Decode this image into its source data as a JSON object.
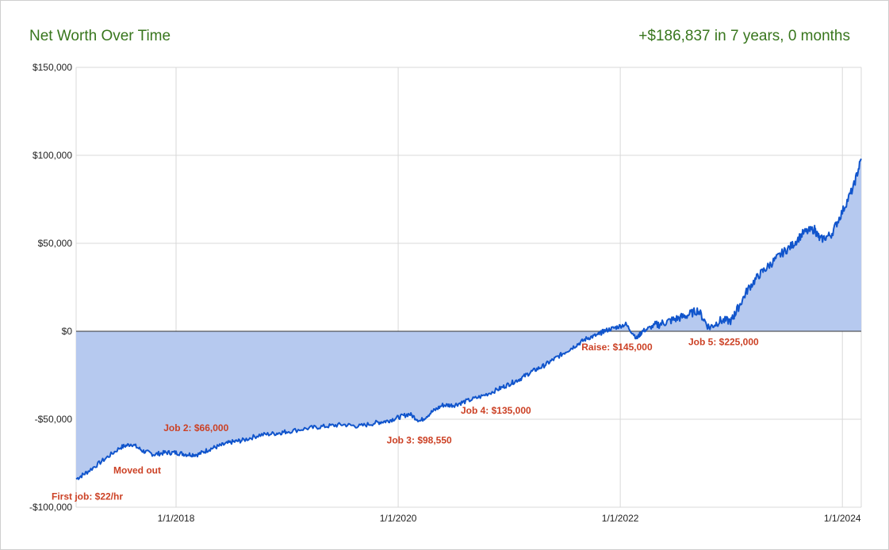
{
  "chart_data": {
    "type": "area",
    "title": "Net Worth Over Time",
    "subtitle": "+$186,837 in 7 years, 0 months",
    "xlabel": "",
    "ylabel": "",
    "x_ticks": [
      "1/1/2018",
      "1/1/2020",
      "1/1/2022",
      "1/1/2024"
    ],
    "x_tick_values": [
      2018.0,
      2020.0,
      2022.0,
      2024.0
    ],
    "xlim": [
      2017.1,
      2024.17
    ],
    "ylim": [
      -100000,
      150000
    ],
    "y_ticks": [
      -100000,
      -50000,
      0,
      50000,
      100000,
      150000
    ],
    "y_tick_labels": [
      "-$100,000",
      "-$50,000",
      "$0",
      "$50,000",
      "$100,000",
      "$150,000"
    ],
    "grid": true,
    "legend": "none",
    "series": [
      {
        "color": "#1155cc",
        "fill": "#b6c9ef",
        "x": [
          2017.1,
          2017.2,
          2017.35,
          2017.5,
          2017.6,
          2017.7,
          2017.8,
          2017.9,
          2018.0,
          2018.1,
          2018.2,
          2018.3,
          2018.4,
          2018.5,
          2018.6,
          2018.75,
          2018.9,
          2019.0,
          2019.2,
          2019.35,
          2019.5,
          2019.65,
          2019.8,
          2019.9,
          2020.0,
          2020.1,
          2020.2,
          2020.3,
          2020.4,
          2020.5,
          2020.6,
          2020.75,
          2020.9,
          2021.0,
          2021.1,
          2021.2,
          2021.3,
          2021.4,
          2021.5,
          2021.6,
          2021.7,
          2021.8,
          2021.85,
          2021.95,
          2022.05,
          2022.15,
          2022.2,
          2022.3,
          2022.4,
          2022.5,
          2022.6,
          2022.7,
          2022.8,
          2022.9,
          2023.0,
          2023.05,
          2023.15,
          2023.25,
          2023.35,
          2023.45,
          2023.55,
          2023.65,
          2023.75,
          2023.8,
          2023.9,
          2024.0,
          2024.1,
          2024.17
        ],
        "values": [
          -84000,
          -80000,
          -73000,
          -66000,
          -64000,
          -68000,
          -70000,
          -69000,
          -69000,
          -70000,
          -70000,
          -67000,
          -65000,
          -63000,
          -62000,
          -59000,
          -58000,
          -57000,
          -55000,
          -54000,
          -53000,
          -54000,
          -52000,
          -51000,
          -49000,
          -47000,
          -51000,
          -46000,
          -42000,
          -42000,
          -40000,
          -37000,
          -33000,
          -30000,
          -27000,
          -23000,
          -20000,
          -16000,
          -12000,
          -8000,
          -4000,
          -2000,
          0,
          2000,
          4000,
          -4000,
          0,
          3000,
          5000,
          7000,
          9000,
          12000,
          2000,
          6000,
          6000,
          12000,
          24000,
          32000,
          38000,
          44000,
          49000,
          56000,
          58000,
          52000,
          55000,
          68000,
          82000,
          98000
        ]
      }
    ],
    "annotations": [
      {
        "text": "First job: $22/hr",
        "x": 2017.2,
        "y": -94000
      },
      {
        "text": "Moved out",
        "x": 2017.65,
        "y": -79000
      },
      {
        "text": "Job 2: $66,000",
        "x": 2018.18,
        "y": -55000
      },
      {
        "text": "Job 3: $98,550",
        "x": 2020.19,
        "y": -62000
      },
      {
        "text": "Job 4: $135,000",
        "x": 2020.88,
        "y": -45000
      },
      {
        "text": "Raise: $145,000",
        "x": 2021.97,
        "y": -9000
      },
      {
        "text": "Job 5: $225,000",
        "x": 2022.93,
        "y": -6000
      }
    ]
  }
}
